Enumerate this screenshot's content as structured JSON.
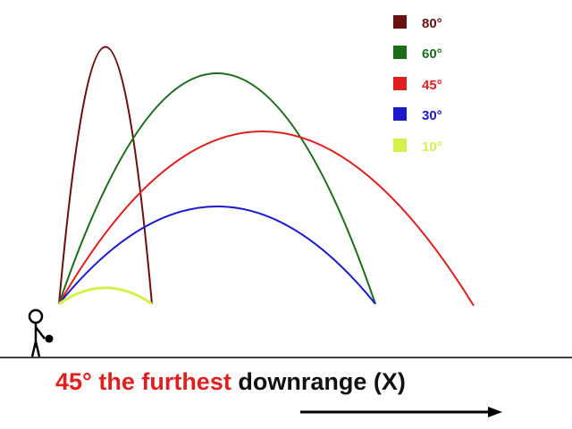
{
  "legend": [
    {
      "label": "80°",
      "color": "#6b0f0f"
    },
    {
      "label": "60°",
      "color": "#1a6e1a"
    },
    {
      "label": "45°",
      "color": "#e02020"
    },
    {
      "label": "30°",
      "color": "#1a1acc"
    },
    {
      "label": "10°",
      "color": "#d4f04a"
    }
  ],
  "caption": {
    "highlight": "45° the furthest",
    "rest": "downrange (X)",
    "highlight_color": "#e02020",
    "rest_color": "#111111"
  },
  "colors": {
    "ground": "#000000",
    "figure": "#000000",
    "arrow": "#000000"
  },
  "icons": [
    "stick-figure-icon",
    "ball-icon",
    "arrow-right-icon"
  ]
}
